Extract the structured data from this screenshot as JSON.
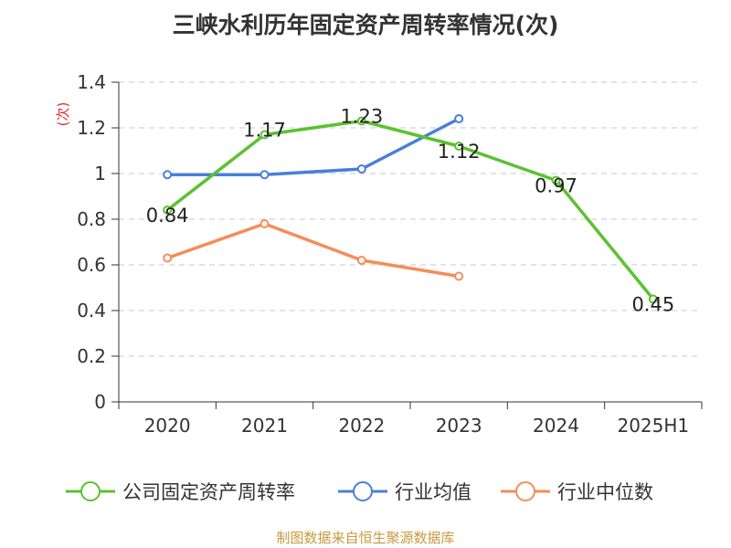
{
  "title": "三峡水利历年固定资产周转率情况(次)",
  "source": "制图数据来自恒生聚源数据库",
  "chart_data": {
    "type": "line",
    "title": "三峡水利历年固定资产周转率情况(次)",
    "ylabel": "(次)",
    "xlabel": "",
    "categories": [
      "2020",
      "2021",
      "2022",
      "2023",
      "2024",
      "2025H1"
    ],
    "ylim": [
      0,
      1.4
    ],
    "yticks": [
      "0",
      "0.2",
      "0.4",
      "0.6",
      "0.8",
      "1",
      "1.2",
      "1.4"
    ],
    "grid": true,
    "legend_position": "bottom",
    "series": [
      {
        "name": "公司固定资产周转率",
        "color": "#5cc130",
        "values": [
          0.84,
          1.17,
          1.23,
          1.12,
          0.97,
          0.45
        ],
        "labels": [
          "0.84",
          "1.17",
          "1.23",
          "1.12",
          "0.97",
          "0.45"
        ]
      },
      {
        "name": "行业均值",
        "color": "#4a7fd8",
        "values": [
          0.995,
          0.995,
          1.02,
          1.24,
          null,
          null
        ]
      },
      {
        "name": "行业中位数",
        "color": "#f58d5a",
        "values": [
          0.63,
          0.78,
          0.62,
          0.55,
          null,
          null
        ]
      }
    ]
  }
}
